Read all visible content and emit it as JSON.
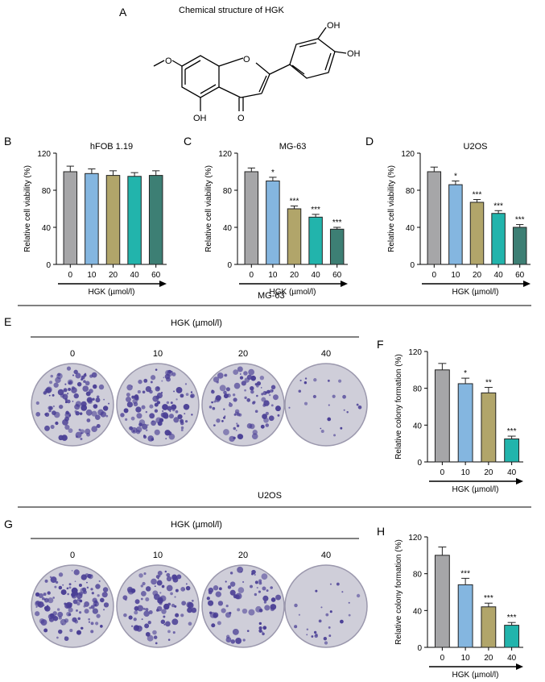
{
  "panels": {
    "A": {
      "letter": "A",
      "title": "Chemical structure of HGK",
      "atoms": {
        "oh_top": "OH",
        "oh_right": "OH",
        "oh_bottom": "OH",
        "o_carbonyl": "O",
        "o_ring": "O",
        "o_methoxy": "O"
      }
    },
    "E": {
      "letter": "E",
      "cell_line": "MG-63",
      "treatment_label": "HGK (µmol/l)",
      "doses": [
        "0",
        "10",
        "20",
        "40"
      ]
    },
    "G": {
      "letter": "G",
      "cell_line": "U2OS",
      "treatment_label": "HGK (µmol/l)",
      "doses": [
        "0",
        "10",
        "20",
        "40"
      ]
    }
  },
  "colors": {
    "bar_0": "#a6a6a8",
    "bar_10": "#84b6e0",
    "bar_20": "#b1a56a",
    "bar_40": "#22b4ac",
    "bar_60": "#3d7f74",
    "colony_stain": "#4a3f95",
    "plate_bg": "#cfced9"
  },
  "chart_data": [
    {
      "id": "B",
      "letter": "B",
      "type": "bar",
      "title": "hFOB 1.19",
      "ylabel": "Relative cell viability (%)",
      "xlabel": "HGK (µmol/l)",
      "categories": [
        "0",
        "10",
        "20",
        "40",
        "60"
      ],
      "values": [
        100,
        98,
        96,
        95,
        96
      ],
      "errors": [
        6,
        5,
        5,
        4,
        5
      ],
      "significance": [
        "",
        "",
        "",
        "",
        ""
      ],
      "ylim": [
        0,
        120
      ],
      "yticks": [
        0,
        40,
        80,
        120
      ]
    },
    {
      "id": "C",
      "letter": "C",
      "type": "bar",
      "title": "MG-63",
      "ylabel": "Relative cell viability (%)",
      "xlabel": "HGK (µmol/l)",
      "categories": [
        "0",
        "10",
        "20",
        "40",
        "60"
      ],
      "values": [
        100,
        90,
        60,
        51,
        38
      ],
      "errors": [
        4,
        4,
        3,
        3,
        2
      ],
      "significance": [
        "",
        "*",
        "***",
        "***",
        "***"
      ],
      "ylim": [
        0,
        120
      ],
      "yticks": [
        0,
        40,
        80,
        120
      ]
    },
    {
      "id": "D",
      "letter": "D",
      "type": "bar",
      "title": "U2OS",
      "ylabel": "Relative cell viability (%)",
      "xlabel": "HGK (µmol/l)",
      "categories": [
        "0",
        "10",
        "20",
        "40",
        "60"
      ],
      "values": [
        100,
        86,
        67,
        55,
        40
      ],
      "errors": [
        5,
        4,
        3,
        3,
        3
      ],
      "significance": [
        "",
        "*",
        "***",
        "***",
        "***"
      ],
      "ylim": [
        0,
        120
      ],
      "yticks": [
        0,
        40,
        80,
        120
      ]
    },
    {
      "id": "F",
      "letter": "F",
      "type": "bar",
      "title": "",
      "ylabel": "Relative colony formation (%)",
      "xlabel": "HGK (µmol/l)",
      "categories": [
        "0",
        "10",
        "20",
        "40"
      ],
      "values": [
        100,
        85,
        75,
        25
      ],
      "errors": [
        7,
        6,
        6,
        3
      ],
      "significance": [
        "",
        "*",
        "**",
        "***"
      ],
      "ylim": [
        0,
        120
      ],
      "yticks": [
        0,
        40,
        80,
        120
      ]
    },
    {
      "id": "H",
      "letter": "H",
      "type": "bar",
      "title": "",
      "ylabel": "Relative colony formation (%)",
      "xlabel": "HGK (µmol/l)",
      "categories": [
        "0",
        "10",
        "20",
        "40"
      ],
      "values": [
        100,
        68,
        44,
        24
      ],
      "errors": [
        9,
        7,
        4,
        3
      ],
      "significance": [
        "",
        "***",
        "***",
        "***"
      ],
      "ylim": [
        0,
        120
      ],
      "yticks": [
        0,
        40,
        80,
        120
      ]
    }
  ]
}
